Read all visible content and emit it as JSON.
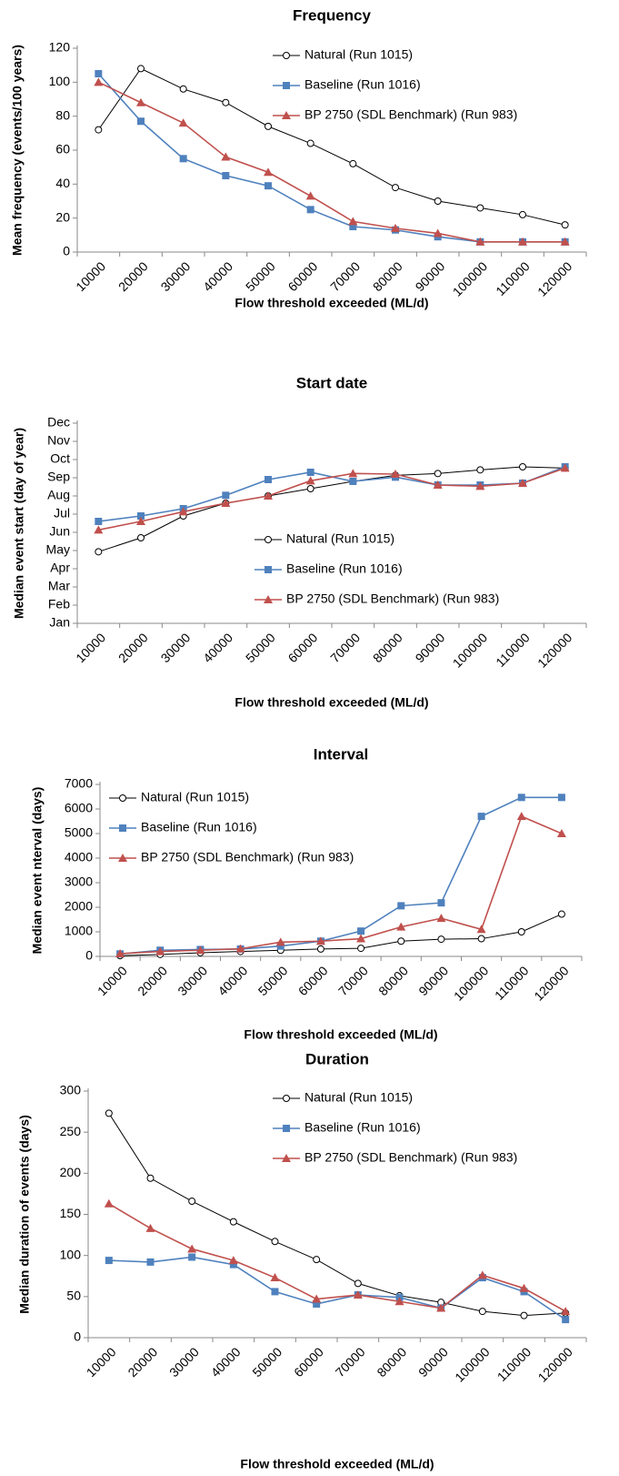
{
  "chart_data": [
    {
      "type": "line",
      "title": "Frequency",
      "y_label": "Mean frequency (events/100 years)",
      "x_label": "Flow threshold exceeded (ML/d)",
      "categories": [
        "10000",
        "20000",
        "30000",
        "40000",
        "50000",
        "60000",
        "70000",
        "80000",
        "90000",
        "100000",
        "110000",
        "120000"
      ],
      "ylim": [
        0,
        120
      ],
      "yticks": [
        0,
        20,
        40,
        60,
        80,
        100,
        120
      ],
      "legend": "upper right",
      "series": [
        {
          "name": "Natural (Run 1015)",
          "color": "#000000",
          "marker": "circle",
          "values": [
            72,
            108,
            96,
            88,
            74,
            64,
            52,
            38,
            30,
            26,
            22,
            16
          ]
        },
        {
          "name": "Baseline (Run 1016)",
          "color": "#4f81bd",
          "marker": "square",
          "values": [
            105,
            77,
            55,
            45,
            39,
            25,
            15,
            13,
            9,
            6,
            6,
            6
          ]
        },
        {
          "name": "BP 2750 (SDL Benchmark) (Run 983)",
          "color": "#c0504d",
          "marker": "triangle",
          "values": [
            100,
            88,
            76,
            56,
            47,
            33,
            18,
            14,
            11,
            6,
            6,
            6
          ]
        }
      ]
    },
    {
      "type": "line",
      "title": "Start date",
      "y_label": "Median event start (day of year)",
      "x_label": "Flow threshold exceeded (ML/d)",
      "categories": [
        "10000",
        "20000",
        "30000",
        "40000",
        "50000",
        "60000",
        "70000",
        "80000",
        "90000",
        "100000",
        "110000",
        "120000"
      ],
      "ylim": [
        0,
        330
      ],
      "yticks": [
        {
          "value": 0,
          "label": "Jan"
        },
        {
          "value": 30,
          "label": "Feb"
        },
        {
          "value": 60,
          "label": "Mar"
        },
        {
          "value": 90,
          "label": "Apr"
        },
        {
          "value": 120,
          "label": "May"
        },
        {
          "value": 150,
          "label": "Jun"
        },
        {
          "value": 180,
          "label": "Jul"
        },
        {
          "value": 210,
          "label": "Aug"
        },
        {
          "value": 240,
          "label": "Sep"
        },
        {
          "value": 270,
          "label": "Oct"
        },
        {
          "value": 300,
          "label": "Nov"
        },
        {
          "value": 330,
          "label": "Dec"
        }
      ],
      "legend": "lower right",
      "series": [
        {
          "name": "Natural (Run 1015)",
          "color": "#000000",
          "marker": "circle",
          "values": [
            118,
            141,
            177,
            198,
            210,
            222,
            234,
            244,
            247,
            253,
            258,
            256
          ]
        },
        {
          "name": "Baseline (Run 1016)",
          "color": "#4f81bd",
          "marker": "square",
          "values": [
            168,
            177,
            189,
            211,
            237,
            249,
            234,
            241,
            228,
            228,
            231,
            258
          ]
        },
        {
          "name": "BP 2750 (SDL Benchmark) (Run 983)",
          "color": "#c0504d",
          "marker": "triangle",
          "values": [
            154,
            168,
            184,
            198,
            210,
            235,
            247,
            246,
            228,
            226,
            231,
            256
          ]
        }
      ]
    },
    {
      "type": "line",
      "title": "Interval",
      "y_label": "Median event nterval (days)",
      "x_label": "Flow threshold exceeded (ML/d)",
      "categories": [
        "10000",
        "20000",
        "30000",
        "40000",
        "50000",
        "60000",
        "70000",
        "80000",
        "90000",
        "100000",
        "110000",
        "120000"
      ],
      "ylim": [
        0,
        7000
      ],
      "yticks": [
        0,
        1000,
        2000,
        3000,
        4000,
        5000,
        6000,
        7000
      ],
      "legend": "upper left",
      "series": [
        {
          "name": "Natural (Run 1015)",
          "color": "#000000",
          "marker": "circle",
          "values": [
            30,
            80,
            150,
            200,
            250,
            300,
            330,
            620,
            700,
            720,
            1000,
            1720
          ]
        },
        {
          "name": "Baseline (Run 1016)",
          "color": "#4f81bd",
          "marker": "square",
          "values": [
            100,
            250,
            280,
            300,
            420,
            620,
            1030,
            2060,
            2180,
            5700,
            6470,
            6470
          ]
        },
        {
          "name": "BP 2750 (SDL Benchmark) (Run 983)",
          "color": "#c0504d",
          "marker": "triangle",
          "values": [
            110,
            200,
            250,
            310,
            580,
            620,
            720,
            1200,
            1550,
            1100,
            5700,
            5000
          ]
        }
      ]
    },
    {
      "type": "line",
      "title": "Duration",
      "y_label": "Median duration of events (days)",
      "x_label": "Flow threshold exceeded (ML/d)",
      "categories": [
        "10000",
        "20000",
        "30000",
        "40000",
        "50000",
        "60000",
        "70000",
        "80000",
        "90000",
        "100000",
        "110000",
        "120000"
      ],
      "ylim": [
        0,
        300
      ],
      "yticks": [
        0,
        50,
        100,
        150,
        200,
        250,
        300
      ],
      "legend": "upper right",
      "series": [
        {
          "name": "Natural (Run 1015)",
          "color": "#000000",
          "marker": "circle",
          "values": [
            273,
            194,
            166,
            141,
            117,
            95,
            66,
            51,
            43,
            32,
            27,
            30
          ]
        },
        {
          "name": "Baseline (Run 1016)",
          "color": "#4f81bd",
          "marker": "square",
          "values": [
            94,
            92,
            98,
            89,
            56,
            41,
            52,
            49,
            36,
            73,
            56,
            22
          ]
        },
        {
          "name": "BP 2750 (SDL Benchmark) (Run 983)",
          "color": "#c0504d",
          "marker": "triangle",
          "values": [
            163,
            133,
            108,
            94,
            73,
            47,
            52,
            44,
            36,
            76,
            60,
            32
          ]
        }
      ]
    }
  ]
}
